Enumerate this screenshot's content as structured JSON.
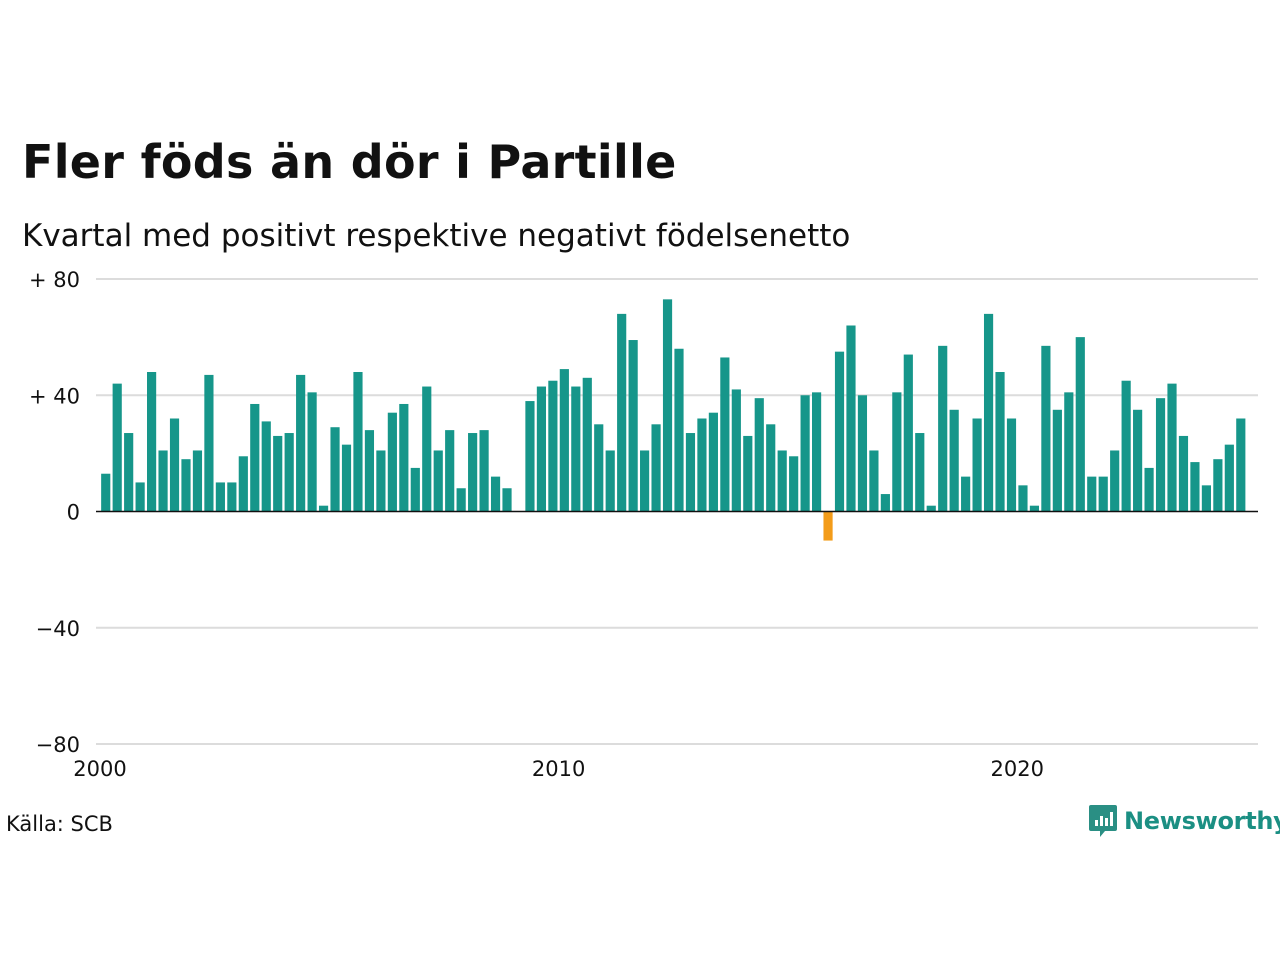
{
  "header": {
    "title": "Fler föds än dör i Partille",
    "subtitle": "Kvartal med positivt respektive negativt födelsenetto"
  },
  "footer": {
    "source": "Källa: SCB",
    "brand": "Newsworthy",
    "brand_icon": "newsworthy-logo-icon"
  },
  "colors": {
    "positive": "#16968a",
    "negative": "#f39c1a",
    "grid": "#dcdcdc",
    "axis": "#111111"
  },
  "chart_data": {
    "type": "bar",
    "title": "Fler föds än dör i Partille",
    "subtitle": "Kvartal med positivt respektive negativt födelsenetto",
    "xlabel": "",
    "ylabel": "",
    "ylim": [
      -80,
      80
    ],
    "xlim": [
      2000,
      2025.25
    ],
    "yticks": [
      80,
      40,
      0,
      -40,
      -80
    ],
    "ytick_labels": [
      "+ 80",
      "+ 40",
      "0",
      "−40",
      "−80"
    ],
    "xticks": [
      2000,
      2010,
      2020
    ],
    "xtick_labels": [
      "2000",
      "2010",
      "2020"
    ],
    "grid": true,
    "start_year": 2000,
    "periods_per_year": 4,
    "values": [
      13,
      44,
      27,
      10,
      48,
      21,
      32,
      18,
      21,
      47,
      10,
      10,
      19,
      37,
      31,
      26,
      27,
      47,
      41,
      2,
      29,
      23,
      48,
      28,
      21,
      34,
      37,
      15,
      43,
      21,
      28,
      8,
      27,
      28,
      12,
      8,
      null,
      38,
      43,
      45,
      49,
      43,
      46,
      30,
      21,
      68,
      59,
      21,
      30,
      73,
      56,
      27,
      32,
      34,
      53,
      42,
      26,
      39,
      30,
      21,
      19,
      40,
      41,
      -10,
      55,
      64,
      40,
      21,
      6,
      41,
      54,
      27,
      2,
      57,
      35,
      12,
      32,
      68,
      48,
      32,
      9,
      2,
      57,
      35,
      41,
      60,
      12,
      12,
      21,
      45,
      35,
      15,
      39,
      44,
      26,
      17,
      9,
      18,
      23,
      32
    ]
  }
}
